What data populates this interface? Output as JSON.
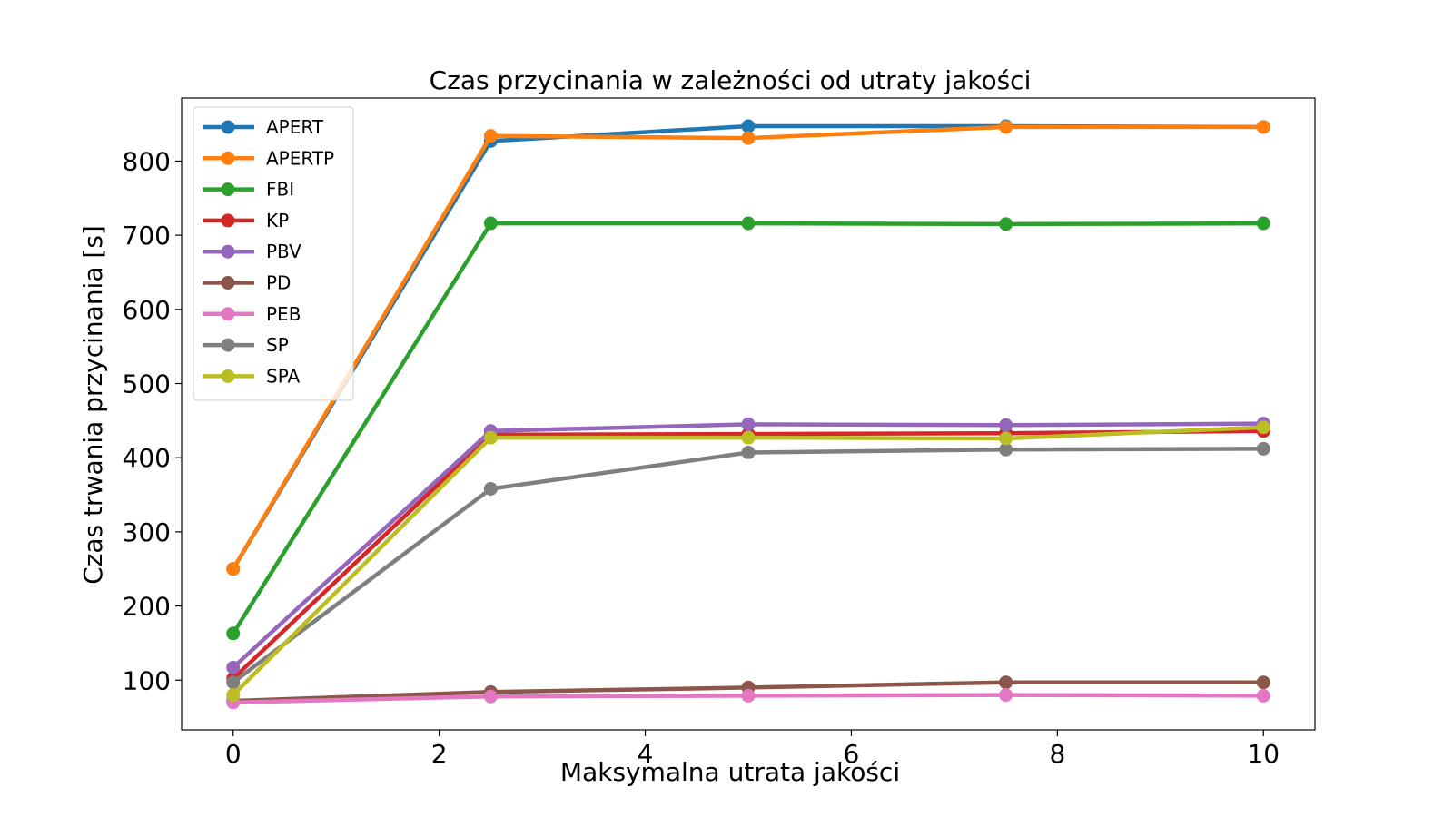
{
  "chart_data": {
    "type": "line",
    "title": "Czas przycinania w zależności od utraty jakości",
    "xlabel": "Maksymalna utrata jakości",
    "ylabel": "Czas trwania przycinania [s]",
    "xlim": [
      -0.5,
      10.5
    ],
    "ylim": [
      33,
      885
    ],
    "xticks": [
      0,
      2,
      4,
      6,
      8,
      10
    ],
    "yticks": [
      100,
      200,
      300,
      400,
      500,
      600,
      700,
      800
    ],
    "grid": false,
    "legend_position": "upper left",
    "x": [
      0,
      2.5,
      5,
      7.5,
      10
    ],
    "series": [
      {
        "name": "APERT",
        "color": "#1f77b4",
        "values": [
          250,
          827,
          847,
          847,
          846
        ]
      },
      {
        "name": "APERTP",
        "color": "#ff7f0e",
        "values": [
          250,
          834,
          831,
          846,
          846
        ]
      },
      {
        "name": "FBI",
        "color": "#2ca02c",
        "values": [
          163,
          716,
          716,
          715,
          716
        ]
      },
      {
        "name": "KP",
        "color": "#d62728",
        "values": [
          102,
          431,
          432,
          433,
          436
        ]
      },
      {
        "name": "PBV",
        "color": "#9467bd",
        "values": [
          117,
          436,
          445,
          444,
          446
        ]
      },
      {
        "name": "PD",
        "color": "#8c564b",
        "values": [
          72,
          84,
          90,
          97,
          97
        ]
      },
      {
        "name": "PEB",
        "color": "#e377c2",
        "values": [
          70,
          78,
          79,
          80,
          79
        ]
      },
      {
        "name": "SP",
        "color": "#7f7f7f",
        "values": [
          97,
          358,
          407,
          411,
          412
        ]
      },
      {
        "name": "SPA",
        "color": "#bcbd22",
        "values": [
          80,
          427,
          427,
          426,
          441
        ]
      }
    ]
  }
}
